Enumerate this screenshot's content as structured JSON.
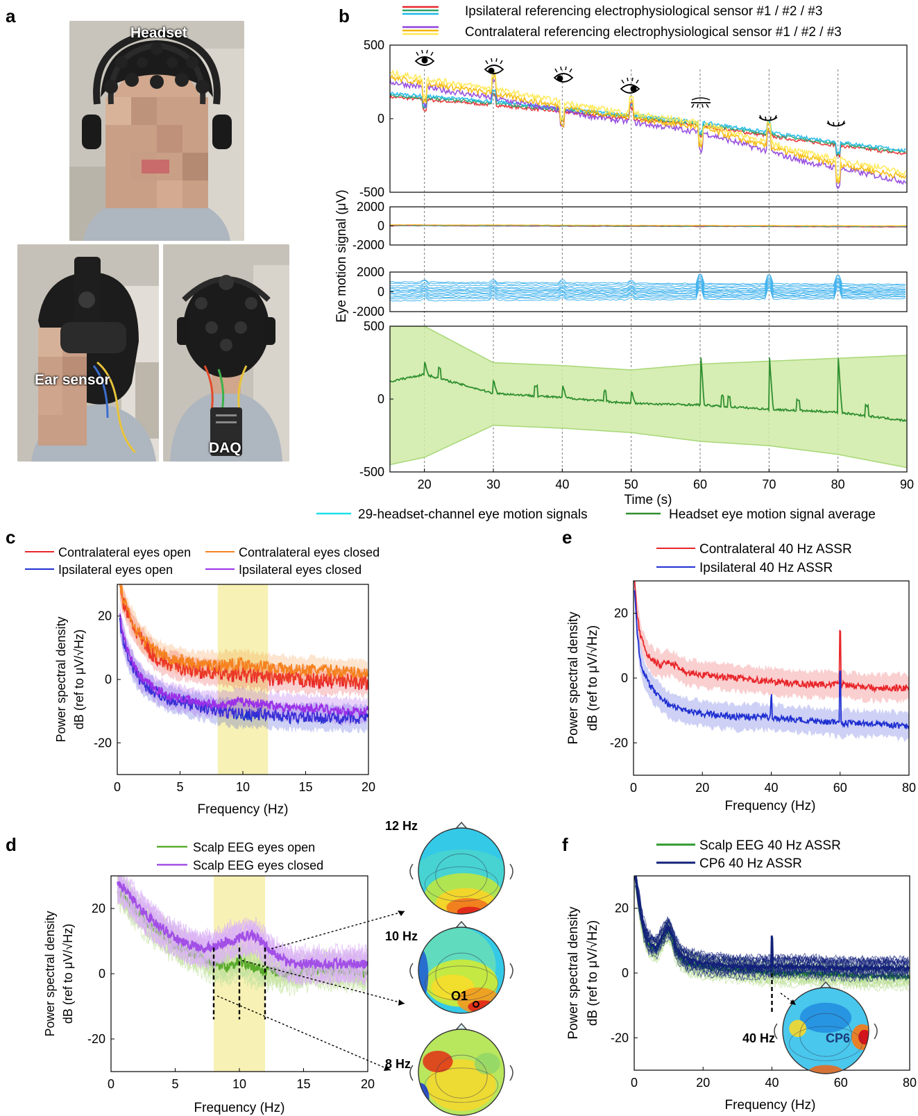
{
  "panel_letters": {
    "a": "a",
    "b": "b",
    "c": "c",
    "d": "d",
    "e": "e",
    "f": "f"
  },
  "photos": {
    "headset_label": "Headset",
    "ear_sensor_label": "Ear sensor",
    "daq_label": "DAQ",
    "colors": {
      "background": "#b9b4aa",
      "shirt": "#aeb6bf",
      "hair": "#1b1b1b",
      "skin": "#d2a88e"
    }
  },
  "legend_b": {
    "ipsi": "Ipsilateral referencing electrophysiological sensor #1 / #2 / #3",
    "contra": "Contralateral referencing electrophysiological sensor #1 / #2 / #3",
    "channels": "29-headset-channel eye motion signals",
    "average": "Headset eye motion signal average"
  },
  "legend_c": {
    "contra_open": "Contralateral eyes open",
    "contra_closed": "Contralateral eyes closed",
    "ipsi_open": "Ipsilateral eyes open",
    "ipsi_closed": "Ipsilateral eyes closed"
  },
  "legend_d": {
    "open": "Scalp EEG eyes open",
    "closed": "Scalp EEG eyes closed"
  },
  "legend_e": {
    "contra": "Contralateral 40 Hz ASSR",
    "ipsi": "Ipsilateral 40 Hz ASSR"
  },
  "legend_f": {
    "scalp": "Scalp EEG 40 Hz ASSR",
    "cp6": "CP6 40 Hz ASSR"
  },
  "topo_labels": {
    "hz12": "12 Hz",
    "hz10": "10 Hz",
    "hz8": "8 Hz",
    "hz40": "40 Hz",
    "o1": "O1",
    "cp6": "CP6"
  },
  "icons": [
    "eye-open-icon",
    "eye-left-icon",
    "eye-right-icon",
    "eye-up-icon",
    "eye-closed-icon"
  ],
  "chart_data": [
    {
      "id": "b",
      "type": "line",
      "xlabel": "Time (s)",
      "ylabel": "Eye motion signal (μV)",
      "xlim": [
        15,
        90
      ],
      "xticks": [
        20,
        30,
        40,
        50,
        60,
        70,
        80,
        90
      ],
      "event_times": [
        20,
        30,
        40,
        50,
        60,
        70,
        80
      ],
      "subplots": [
        {
          "id": "b1",
          "ylim": [
            -500,
            500
          ],
          "yticks": [
            -500,
            0,
            500
          ],
          "series": [
            {
              "name": "Ipsilateral referencing electrophysiological sensor #1 / #2 / #3",
              "colors": [
                "#e8262a",
                "#2aa56a",
                "#1ab8e8"
              ],
              "x": [
                15,
                30,
                45,
                60,
                75,
                90
              ],
              "values": [
                160,
                105,
                35,
                -35,
                -140,
                -230
              ]
            },
            {
              "name": "Contralateral referencing electrophysiological sensor #1 / #2 / #3",
              "colors": [
                "#8e3fdc",
                "#f5b700",
                "#ffe84d"
              ],
              "x": [
                15,
                30,
                45,
                60,
                75,
                90
              ],
              "values": [
                280,
                170,
                40,
                -60,
                -260,
                -400
              ]
            }
          ]
        },
        {
          "id": "b2",
          "ylim": [
            -2000,
            2000
          ],
          "yticks": [
            -2000,
            0,
            2000
          ],
          "series": [
            {
              "name": "",
              "x": [
                15,
                90
              ],
              "values": [
                60,
                -60
              ]
            }
          ]
        },
        {
          "id": "b3",
          "ylim": [
            -2000,
            2000
          ],
          "yticks": [
            -2000,
            0,
            2000
          ],
          "series": [
            {
              "name": "29-headset-channel eye motion signals",
              "color": "#45b4ee",
              "x": [
                15,
                90
              ],
              "offsets": [
                1000,
                850,
                650,
                450,
                300,
                150,
                50,
                -100,
                -250,
                -400,
                -550,
                -700,
                -900
              ]
            }
          ]
        },
        {
          "id": "b4",
          "ylim": [
            -500,
            500
          ],
          "yticks": [
            -500,
            0,
            500
          ],
          "series": [
            {
              "name": "Headset eye motion signal average",
              "color": "#2f8f2f",
              "x": [
                15,
                20,
                30,
                40,
                50,
                60,
                70,
                80,
                90
              ],
              "values": [
                120,
                170,
                40,
                10,
                -30,
                -40,
                -70,
                -90,
                -150
              ],
              "band_upper": [
                500,
                500,
                250,
                230,
                200,
                240,
                260,
                280,
                300
              ],
              "band_lower": [
                -450,
                -400,
                -180,
                -200,
                -230,
                -290,
                -320,
                -380,
                -470
              ]
            }
          ]
        }
      ]
    },
    {
      "id": "c",
      "type": "line",
      "xlabel": "Frequency (Hz)",
      "ylabel": [
        "Power spectral density",
        "dB (ref to μV/√Hz)"
      ],
      "xlim": [
        0,
        20
      ],
      "ylim": [
        -30,
        30
      ],
      "xticks": [
        0,
        5,
        10,
        15,
        20
      ],
      "yticks": [
        -20,
        0,
        20
      ],
      "highlight": [
        8,
        12
      ],
      "series": [
        {
          "name": "Contralateral eyes open",
          "color": "#e8262a",
          "x": [
            0.2,
            0.5,
            1,
            1.5,
            2,
            3,
            4,
            5,
            6,
            8,
            10,
            12,
            14,
            16,
            18,
            20
          ],
          "values": [
            29,
            24,
            19,
            15,
            12,
            7,
            5,
            4,
            3,
            2,
            1.5,
            0.5,
            0,
            -0.5,
            -0.5,
            -1
          ]
        },
        {
          "name": "Contralateral eyes closed",
          "color": "#f5821f",
          "x": [
            0.2,
            0.5,
            1,
            1.5,
            2,
            3,
            4,
            5,
            6,
            8,
            10,
            12,
            14,
            16,
            18,
            20
          ],
          "values": [
            30,
            25,
            20,
            16,
            13,
            9,
            7,
            6,
            5,
            4.5,
            5,
            4,
            3,
            3,
            2.5,
            2
          ]
        },
        {
          "name": "Ipsilateral eyes open",
          "color": "#1f2fd1",
          "x": [
            0.2,
            0.5,
            1,
            1.5,
            2,
            3,
            4,
            5,
            6,
            8,
            10,
            12,
            14,
            16,
            18,
            20
          ],
          "values": [
            18,
            12,
            6,
            2,
            -1,
            -4,
            -6,
            -7,
            -8,
            -10,
            -11,
            -11,
            -12,
            -12,
            -12,
            -12
          ]
        },
        {
          "name": "Ipsilateral eyes closed",
          "color": "#9b30e8",
          "x": [
            0.2,
            0.5,
            1,
            1.5,
            2,
            3,
            4,
            5,
            6,
            8,
            10,
            12,
            14,
            16,
            18,
            20
          ],
          "values": [
            20,
            13,
            7,
            3,
            0,
            -3,
            -5,
            -6,
            -7,
            -8,
            -7,
            -8,
            -9,
            -9,
            -10,
            -10
          ]
        }
      ]
    },
    {
      "id": "d",
      "type": "line",
      "xlabel": "Frequency (Hz)",
      "ylabel": [
        "Power spectral density",
        "dB (ref to μV/√Hz)"
      ],
      "xlim": [
        0,
        20
      ],
      "ylim": [
        -30,
        30
      ],
      "xticks": [
        0,
        5,
        10,
        15,
        20
      ],
      "yticks": [
        -20,
        0,
        20
      ],
      "highlight": [
        8,
        12
      ],
      "markers": [
        8,
        10,
        12
      ],
      "series": [
        {
          "name": "Scalp EEG eyes open",
          "color": "#5aab2c",
          "light_color": "#c3e39e",
          "x": [
            0.5,
            1,
            2,
            3,
            4,
            5,
            6,
            7,
            8,
            9,
            10,
            11,
            12,
            13,
            14,
            16,
            18,
            20
          ],
          "values": [
            26,
            24,
            19,
            15,
            12,
            9,
            7,
            5,
            3,
            2,
            4,
            2,
            1,
            0.5,
            0,
            1,
            1,
            0
          ]
        },
        {
          "name": "Scalp EEG eyes closed",
          "color": "#a24fe6",
          "light_color": "#dcb2f7",
          "x": [
            0.5,
            1,
            2,
            3,
            4,
            5,
            6,
            7,
            8,
            9,
            10,
            11,
            12,
            13,
            14,
            16,
            18,
            20
          ],
          "values": [
            28,
            26,
            21,
            17,
            14,
            11,
            9,
            8,
            8,
            10,
            11,
            12,
            9,
            5,
            3,
            3,
            3,
            3
          ]
        }
      ]
    },
    {
      "id": "e",
      "type": "line",
      "xlabel": "Frequency (Hz)",
      "ylabel": [
        "Power spectral density",
        "dB (ref to μV/√Hz)"
      ],
      "xlim": [
        0,
        80
      ],
      "ylim": [
        -30,
        30
      ],
      "xticks": [
        0,
        20,
        40,
        60,
        80
      ],
      "yticks": [
        -20,
        0,
        20
      ],
      "series": [
        {
          "name": "Contralateral 40 Hz ASSR",
          "color": "#e8262a",
          "x": [
            0.3,
            1,
            2,
            4,
            6,
            8,
            10,
            12,
            15,
            20,
            30,
            40,
            50,
            60,
            70,
            80
          ],
          "values": [
            30,
            20,
            13,
            7,
            5,
            4,
            5,
            4,
            2,
            1,
            0,
            -1,
            -2,
            -2,
            -3,
            -3
          ]
        },
        {
          "name": "Ipsilateral 40 Hz ASSR",
          "color": "#1f2fd1",
          "x": [
            0.3,
            1,
            2,
            4,
            6,
            8,
            10,
            12,
            15,
            20,
            30,
            40,
            50,
            60,
            70,
            80
          ],
          "values": [
            28,
            15,
            5,
            -1,
            -4,
            -6,
            -8,
            -9,
            -10,
            -11,
            -12,
            -12,
            -13,
            -14,
            -14,
            -15
          ]
        }
      ],
      "peaks": [
        {
          "x": 40,
          "series": 1,
          "height": 6
        },
        {
          "x": 60,
          "series": 0,
          "height": 17
        },
        {
          "x": 60,
          "series": 1,
          "height": 17
        }
      ]
    },
    {
      "id": "f",
      "type": "line",
      "xlabel": "Frequency (Hz)",
      "ylabel": [
        "Power spectral density",
        "dB (ref to μV/√Hz)"
      ],
      "xlim": [
        0,
        80
      ],
      "ylim": [
        -30,
        30
      ],
      "xticks": [
        0,
        20,
        40,
        60,
        80
      ],
      "yticks": [
        -20,
        0,
        20
      ],
      "marker": 40,
      "series": [
        {
          "name": "Scalp EEG 40 Hz ASSR",
          "color": "#2e9a2e",
          "light_color": "#b6dd90",
          "x": [
            0.3,
            1,
            2,
            3,
            4,
            5,
            6,
            7,
            8,
            9,
            10,
            11,
            12,
            14,
            16,
            20,
            30,
            40,
            50,
            60,
            70,
            80
          ],
          "values": [
            30,
            24,
            17,
            12,
            9,
            8,
            7,
            8,
            10,
            12,
            13,
            11,
            7,
            4,
            3,
            2,
            1,
            0,
            0,
            -0.5,
            -1,
            -1
          ]
        },
        {
          "name": "CP6 40 Hz ASSR",
          "color": "#13217a",
          "x": [
            0.3,
            1,
            2,
            3,
            4,
            5,
            6,
            7,
            8,
            9,
            10,
            11,
            12,
            14,
            16,
            20,
            30,
            40,
            50,
            60,
            70,
            80
          ],
          "values": [
            30,
            25,
            18,
            13,
            10,
            9,
            8,
            9,
            11,
            13,
            14,
            12,
            8,
            5,
            4,
            3,
            2,
            2,
            2,
            1.5,
            1.5,
            1.5
          ]
        }
      ],
      "peaks": [
        {
          "x": 40,
          "series": 1,
          "height": 9
        },
        {
          "x": 40,
          "series": 0,
          "height": 4
        }
      ]
    }
  ]
}
